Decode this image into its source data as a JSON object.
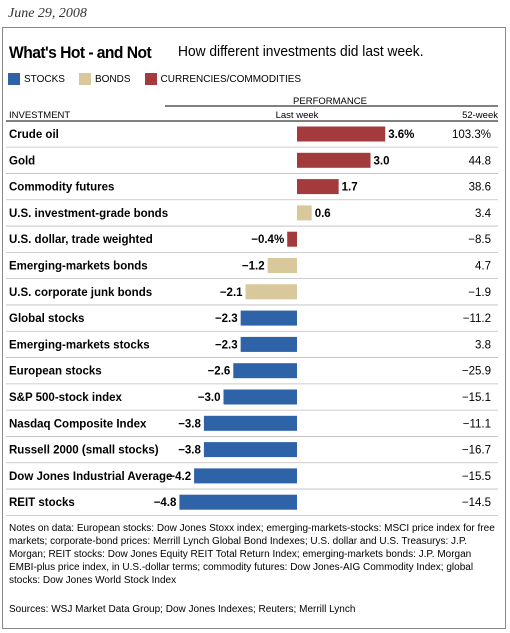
{
  "date": "June 29, 2008",
  "title": "What's Hot - and Not",
  "subtitle": "How different investments did last week.",
  "legend": [
    {
      "label": "STOCKS",
      "color": "#2f63a8"
    },
    {
      "label": "BONDS",
      "color": "#d9c89b"
    },
    {
      "label": "CURRENCIES/COMMODITIES",
      "color": "#a33a3c"
    }
  ],
  "headers": {
    "investment": "INVESTMENT",
    "performance": "PERFORMANCE",
    "last_week": "Last week",
    "year": "52-week"
  },
  "chart_data": {
    "type": "bar",
    "orientation": "horizontal",
    "categories": [
      "Crude oil",
      "Gold",
      "Commodity futures",
      "U.S. investment-grade bonds",
      "U.S. dollar, trade weighted",
      "Emerging-markets bonds",
      "U.S. corporate junk bonds",
      "Global stocks",
      "Emerging-markets stocks",
      "European stocks",
      "S&P 500-stock index",
      "Nasdaq Composite Index",
      "Russell 2000 (small stocks)",
      "Dow Jones Industrial Average",
      "REIT stocks"
    ],
    "groups": [
      "commodity",
      "commodity",
      "commodity",
      "bond",
      "commodity",
      "bond",
      "bond",
      "stock",
      "stock",
      "stock",
      "stock",
      "stock",
      "stock",
      "stock",
      "stock"
    ],
    "values": [
      3.6,
      3.0,
      1.7,
      0.6,
      -0.4,
      -1.2,
      -2.1,
      -2.3,
      -2.3,
      -2.6,
      -3.0,
      -3.8,
      -3.8,
      -4.2,
      -4.8
    ],
    "value_labels": [
      "3.6%",
      "3.0",
      "1.7",
      "0.6",
      "−0.4%",
      "−1.2",
      "−2.1",
      "−2.3",
      "−2.3",
      "−2.6",
      "−3.0",
      "−3.8",
      "−3.8",
      "−4.2",
      "−4.8"
    ],
    "week52": [
      "103.3%",
      "44.8",
      "38.6",
      "3.4",
      "−8.5",
      "4.7",
      "−1.9",
      "−11.2",
      "3.8",
      "−25.9",
      "−15.1",
      "−11.1",
      "−16.7",
      "−15.5",
      "−14.5"
    ],
    "colors": {
      "stock": "#2f63a8",
      "bond": "#d9c89b",
      "commodity": "#a33a3c"
    }
  },
  "notes": "Notes on data: European stocks: Dow Jones Stoxx index; emerging-markets-stocks: MSCI price index for free markets; corporate-bond prices: Merrill Lynch Global Bond Indexes; U.S. dollar and U.S. Treasurys: J.P. Morgan; REIT stocks: Dow Jones Equity REIT Total Return Index; emerging-markets bonds: J.P. Morgan EMBI-plus price index, in U.S.-dollar terms; commodity futures: Dow Jones-AIG Commodity Index; global stocks: Dow Jones World Stock Index",
  "sources": "Sources: WSJ Market Data Group; Dow Jones Indexes; Reuters; Merrill Lynch"
}
